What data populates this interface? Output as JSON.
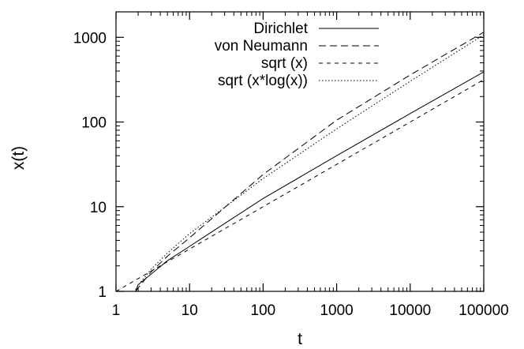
{
  "chart_data": {
    "type": "line",
    "title": "",
    "xlabel": "t",
    "ylabel": "x(t)",
    "x_scale": "log",
    "y_scale": "log",
    "xlim": [
      1,
      100000
    ],
    "ylim": [
      1,
      2000
    ],
    "x_ticks": [
      "1",
      "10",
      "100",
      "1000",
      "10000",
      "100000"
    ],
    "x_tick_values": [
      1,
      10,
      100,
      1000,
      10000,
      100000
    ],
    "y_ticks": [
      "1",
      "10",
      "100",
      "1000"
    ],
    "y_tick_values": [
      1,
      10,
      100,
      1000
    ],
    "grid": false,
    "legend_position": "top-right",
    "series": [
      {
        "name": "Dirichlet",
        "dash": "solid",
        "color": "#000000",
        "x": [
          1.85,
          2,
          3,
          5,
          10,
          100,
          1000,
          10000,
          100000
        ],
        "y": [
          1,
          1.2,
          1.6,
          2.3,
          3.4,
          12.5,
          40,
          126,
          390
        ]
      },
      {
        "name": "von Neumann",
        "dash": "long-dash",
        "color": "#000000",
        "x": [
          1.85,
          2,
          3,
          5,
          10,
          100,
          1000,
          10000,
          100000
        ],
        "y": [
          1,
          1.1,
          1.7,
          2.6,
          4.3,
          24,
          105,
          360,
          1150
        ]
      },
      {
        "name": "sqrt (x)",
        "dash": "short-dash",
        "color": "#000000",
        "x": [
          1,
          10,
          100,
          1000,
          10000,
          100000
        ],
        "y": [
          1,
          3.16,
          10,
          31.6,
          100,
          316
        ]
      },
      {
        "name": "sqrt (x*log(x))",
        "dash": "dotted",
        "color": "#000000",
        "x": [
          1.5,
          2,
          3,
          5,
          10,
          100,
          1000,
          10000,
          100000
        ],
        "y": [
          0.78,
          1.18,
          1.82,
          2.84,
          4.8,
          21.5,
          83,
          303,
          1070
        ]
      }
    ]
  }
}
